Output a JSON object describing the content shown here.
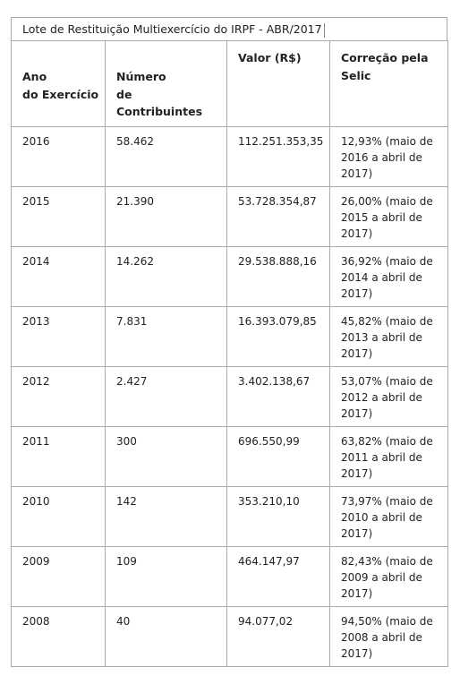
{
  "caption": "Lote de Restituição Multiexercício do IRPF - ABR/2017",
  "headers": {
    "year": "Ano\ndo Exercício",
    "taxpayers": "Número\nde Contribuintes",
    "value": "Valor (R$)",
    "correction": "Correção pela Selic"
  },
  "rows": [
    {
      "year": "2016",
      "taxpayers": "58.462",
      "value": "112.251.353,35",
      "correction": "12,93% (maio de 2016 a abril de 2017)"
    },
    {
      "year": "2015",
      "taxpayers": "21.390",
      "value": "53.728.354,87",
      "correction": "26,00% (maio de 2015 a abril de 2017)"
    },
    {
      "year": "2014",
      "taxpayers": "14.262",
      "value": "29.538.888,16",
      "correction": "36,92% (maio de 2014 a abril de 2017)"
    },
    {
      "year": "2013",
      "taxpayers": "7.831",
      "value": "16.393.079,85",
      "correction": "45,82% (maio de 2013 a abril de 2017)"
    },
    {
      "year": "2012",
      "taxpayers": "2.427",
      "value": "3.402.138,67",
      "correction": "53,07% (maio de 2012 a abril de 2017)"
    },
    {
      "year": "2011",
      "taxpayers": "300",
      "value": "696.550,99",
      "correction": "63,82% (maio de 2011 a abril de 2017)"
    },
    {
      "year": "2010",
      "taxpayers": "142",
      "value": "353.210,10",
      "correction": "73,97% (maio de 2010 a abril de 2017)"
    },
    {
      "year": "2009",
      "taxpayers": "109",
      "value": "464.147,97",
      "correction": "82,43% (maio de 2009 a abril de 2017)"
    },
    {
      "year": "2008",
      "taxpayers": "40",
      "value": "94.077,02",
      "correction": "94,50% (maio de 2008 a abril de 2017)"
    }
  ]
}
